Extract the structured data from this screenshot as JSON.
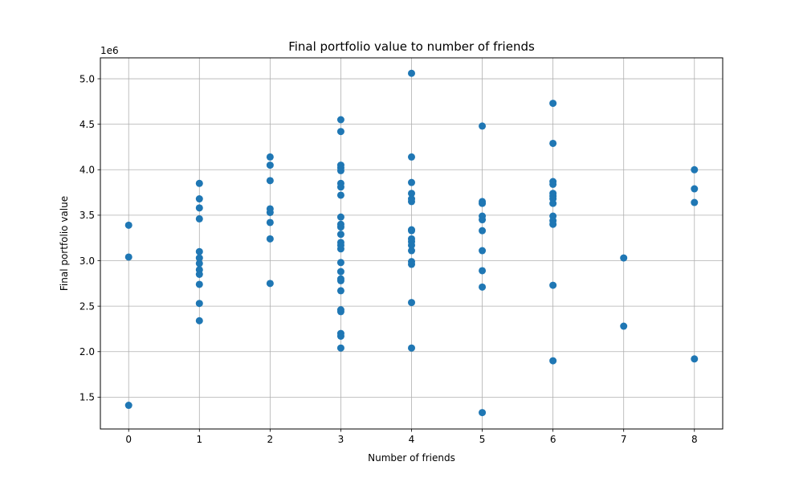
{
  "chart_data": {
    "type": "scatter",
    "title": "Final portfolio value to number of friends",
    "xlabel": "Number of friends",
    "ylabel": "Final portfolio value",
    "y_offset_label": "1e6",
    "xlim": [
      -0.4,
      8.4
    ],
    "ylim": [
      1150000,
      5230000
    ],
    "xticks": [
      0,
      1,
      2,
      3,
      4,
      5,
      6,
      7,
      8
    ],
    "xtick_labels": [
      "0",
      "1",
      "2",
      "3",
      "4",
      "5",
      "6",
      "7",
      "8"
    ],
    "yticks": [
      1500000,
      2000000,
      2500000,
      3000000,
      3500000,
      4000000,
      4500000,
      5000000
    ],
    "ytick_labels": [
      "1.5",
      "2.0",
      "2.5",
      "3.0",
      "3.5",
      "4.0",
      "4.5",
      "5.0"
    ],
    "grid": true,
    "marker_color": "#1f77b4",
    "series": [
      {
        "points": [
          [
            0,
            3390000
          ],
          [
            0,
            3040000
          ],
          [
            0,
            1410000
          ],
          [
            1,
            3850000
          ],
          [
            1,
            3680000
          ],
          [
            1,
            3580000
          ],
          [
            1,
            3460000
          ],
          [
            1,
            3100000
          ],
          [
            1,
            3030000
          ],
          [
            1,
            2970000
          ],
          [
            1,
            2900000
          ],
          [
            1,
            2850000
          ],
          [
            1,
            2740000
          ],
          [
            1,
            2530000
          ],
          [
            1,
            2340000
          ],
          [
            2,
            4140000
          ],
          [
            2,
            4050000
          ],
          [
            2,
            3880000
          ],
          [
            2,
            3570000
          ],
          [
            2,
            3530000
          ],
          [
            2,
            3420000
          ],
          [
            2,
            3240000
          ],
          [
            2,
            2750000
          ],
          [
            3,
            4550000
          ],
          [
            3,
            4420000
          ],
          [
            3,
            4050000
          ],
          [
            3,
            4020000
          ],
          [
            3,
            3990000
          ],
          [
            3,
            3850000
          ],
          [
            3,
            3810000
          ],
          [
            3,
            3720000
          ],
          [
            3,
            3480000
          ],
          [
            3,
            3400000
          ],
          [
            3,
            3370000
          ],
          [
            3,
            3290000
          ],
          [
            3,
            3200000
          ],
          [
            3,
            3170000
          ],
          [
            3,
            3130000
          ],
          [
            3,
            2980000
          ],
          [
            3,
            2880000
          ],
          [
            3,
            2800000
          ],
          [
            3,
            2780000
          ],
          [
            3,
            2670000
          ],
          [
            3,
            2460000
          ],
          [
            3,
            2440000
          ],
          [
            3,
            2200000
          ],
          [
            3,
            2170000
          ],
          [
            3,
            2040000
          ],
          [
            4,
            5060000
          ],
          [
            4,
            4140000
          ],
          [
            4,
            3860000
          ],
          [
            4,
            3740000
          ],
          [
            4,
            3680000
          ],
          [
            4,
            3650000
          ],
          [
            4,
            3340000
          ],
          [
            4,
            3330000
          ],
          [
            4,
            3240000
          ],
          [
            4,
            3210000
          ],
          [
            4,
            3170000
          ],
          [
            4,
            3110000
          ],
          [
            4,
            2990000
          ],
          [
            4,
            2960000
          ],
          [
            4,
            2540000
          ],
          [
            4,
            2040000
          ],
          [
            5,
            4480000
          ],
          [
            5,
            3650000
          ],
          [
            5,
            3630000
          ],
          [
            5,
            3490000
          ],
          [
            5,
            3450000
          ],
          [
            5,
            3330000
          ],
          [
            5,
            3110000
          ],
          [
            5,
            2890000
          ],
          [
            5,
            2710000
          ],
          [
            5,
            1330000
          ],
          [
            6,
            4730000
          ],
          [
            6,
            4290000
          ],
          [
            6,
            3870000
          ],
          [
            6,
            3840000
          ],
          [
            6,
            3740000
          ],
          [
            6,
            3710000
          ],
          [
            6,
            3680000
          ],
          [
            6,
            3630000
          ],
          [
            6,
            3490000
          ],
          [
            6,
            3440000
          ],
          [
            6,
            3400000
          ],
          [
            6,
            2730000
          ],
          [
            6,
            1900000
          ],
          [
            7,
            3030000
          ],
          [
            7,
            2280000
          ],
          [
            8,
            4000000
          ],
          [
            8,
            3790000
          ],
          [
            8,
            3640000
          ],
          [
            8,
            1920000
          ]
        ]
      }
    ]
  }
}
